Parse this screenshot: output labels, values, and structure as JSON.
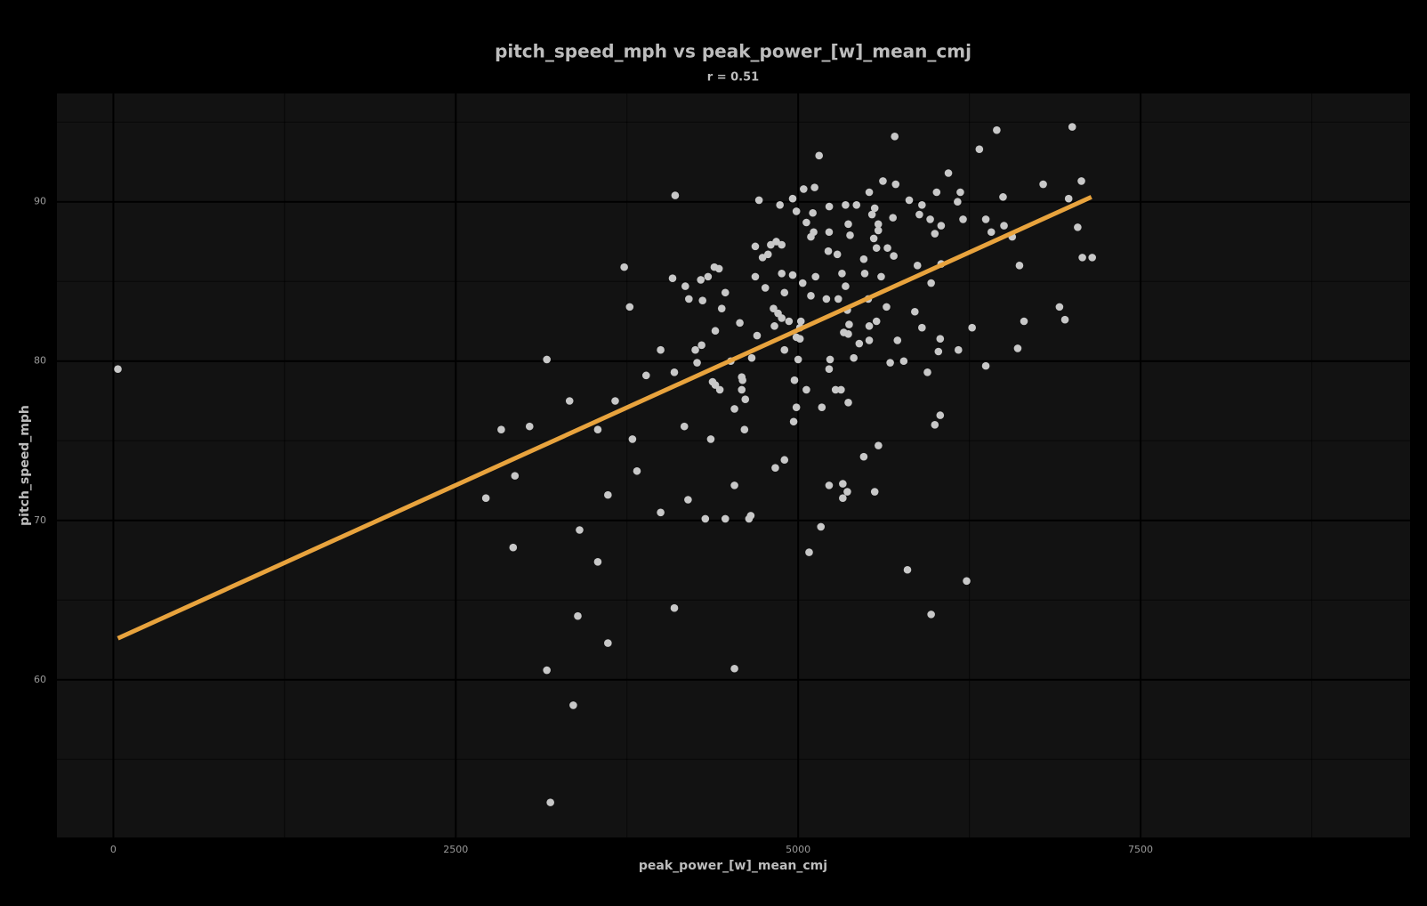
{
  "chart_data": {
    "type": "scatter",
    "title": "pitch_speed_mph vs peak_power_[w]_mean_cmj",
    "subtitle": "r =  0.51",
    "x_label": "peak_power_[w]_mean_cmj",
    "y_label": "pitch_speed_mph",
    "xlim": [
      -412,
      9468
    ],
    "ylim": [
      50.1,
      96.8
    ],
    "xticks": [
      0,
      2500,
      5000,
      7500
    ],
    "yticks": [
      60,
      70,
      80,
      90
    ],
    "x_minor_ticks": [
      1250,
      3750,
      6250,
      8750
    ],
    "y_minor_ticks": [
      55,
      65,
      75,
      85,
      95
    ],
    "grid": true,
    "background": "#121212",
    "points": {
      "color": "#c8c8c8",
      "x": [
        33,
        7001,
        6450,
        5705,
        6323,
        5153,
        6097,
        7068,
        6789,
        5619,
        5712,
        5120,
        5040,
        6184,
        6496,
        6975,
        4102,
        4714,
        4960,
        5519,
        5811,
        6011,
        6164,
        4867,
        5227,
        5346,
        5426,
        5559,
        5904,
        4987,
        5107,
        5539,
        5692,
        5885,
        5964,
        6204,
        6370,
        5060,
        5366,
        5585,
        6044,
        6503,
        7041,
        5113,
        5226,
        5379,
        5585,
        5998,
        6410,
        6563,
        5093,
        5552,
        4840,
        4800,
        4687,
        4880,
        5572,
        5652,
        5220,
        5286,
        4780,
        4740,
        5479,
        5698,
        7075,
        7147,
        3730,
        4388,
        4422,
        5871,
        6044,
        6616,
        4880,
        4960,
        5127,
        5320,
        5486,
        5606,
        4083,
        4289,
        4342,
        4687,
        5033,
        5971,
        4176,
        4760,
        4900,
        5346,
        4468,
        5093,
        4202,
        4302,
        5206,
        5293,
        5512,
        3770,
        4820,
        4853,
        4442,
        5359,
        5645,
        5852,
        6908,
        4880,
        4933,
        5020,
        5372,
        5572,
        5519,
        6649,
        6948,
        4574,
        4827,
        5013,
        5904,
        6270,
        4395,
        5333,
        5366,
        4700,
        4987,
        5013,
        6037,
        4295,
        5446,
        5519,
        5725,
        4249,
        3996,
        4900,
        6024,
        6170,
        6603,
        4661,
        5000,
        5233,
        5406,
        3165,
        4262,
        4508,
        5672,
        5771,
        5226,
        6370,
        4096,
        5944,
        3890,
        4588,
        4594,
        4973,
        4375,
        4395,
        5060,
        5273,
        5313,
        4428,
        4588,
        3331,
        3664,
        4614,
        5366,
        4987,
        5173,
        4535,
        6037,
        4967,
        4169,
        5998,
        3039,
        2832,
        3537,
        4608,
        4362,
        3790,
        5586,
        5479,
        4900,
        4833,
        3823,
        2932,
        5326,
        5226,
        4535,
        5359,
        5559,
        3611,
        2720,
        5326,
        4196,
        3996,
        4654,
        4641,
        4322,
        4468,
        3404,
        5166,
        2919,
        5080,
        3537,
        5798,
        6230,
        4096,
        3391,
        5971,
        3611,
        3165,
        4535,
        3358,
        3191
      ],
      "y": [
        79.5,
        94.7,
        94.5,
        94.1,
        93.3,
        92.9,
        91.8,
        91.3,
        91.1,
        91.3,
        91.1,
        90.9,
        90.8,
        90.6,
        90.3,
        90.2,
        90.4,
        90.1,
        90.2,
        90.6,
        90.1,
        90.6,
        90.0,
        89.8,
        89.7,
        89.8,
        89.8,
        89.6,
        89.8,
        89.4,
        89.3,
        89.2,
        89.0,
        89.2,
        88.9,
        88.9,
        88.9,
        88.7,
        88.6,
        88.6,
        88.5,
        88.5,
        88.4,
        88.1,
        88.1,
        87.9,
        88.2,
        88.0,
        88.1,
        87.8,
        87.8,
        87.7,
        87.5,
        87.3,
        87.2,
        87.3,
        87.1,
        87.1,
        86.9,
        86.7,
        86.7,
        86.5,
        86.4,
        86.6,
        86.5,
        86.5,
        85.9,
        85.9,
        85.8,
        86.0,
        86.1,
        86.0,
        85.5,
        85.4,
        85.3,
        85.5,
        85.5,
        85.3,
        85.2,
        85.1,
        85.3,
        85.3,
        84.9,
        84.9,
        84.7,
        84.6,
        84.3,
        84.7,
        84.3,
        84.1,
        83.9,
        83.8,
        83.9,
        83.9,
        83.9,
        83.4,
        83.3,
        83.0,
        83.3,
        83.2,
        83.4,
        83.1,
        83.4,
        82.7,
        82.5,
        82.5,
        82.3,
        82.5,
        82.2,
        82.5,
        82.6,
        82.4,
        82.2,
        82.1,
        82.1,
        82.1,
        81.9,
        81.8,
        81.7,
        81.6,
        81.5,
        81.4,
        81.4,
        81.0,
        81.1,
        81.3,
        81.3,
        80.7,
        80.7,
        80.7,
        80.6,
        80.7,
        80.8,
        80.2,
        80.1,
        80.1,
        80.2,
        80.1,
        79.9,
        80.0,
        79.9,
        80.0,
        79.5,
        79.7,
        79.3,
        79.3,
        79.1,
        79.0,
        78.8,
        78.8,
        78.7,
        78.5,
        78.2,
        78.2,
        78.2,
        78.2,
        78.2,
        77.5,
        77.5,
        77.6,
        77.4,
        77.1,
        77.1,
        77.0,
        76.6,
        76.2,
        75.9,
        76.0,
        75.9,
        75.7,
        75.7,
        75.7,
        75.1,
        75.1,
        74.7,
        74.0,
        73.8,
        73.3,
        73.1,
        72.8,
        72.3,
        72.2,
        72.2,
        71.8,
        71.8,
        71.6,
        71.4,
        71.4,
        71.3,
        70.5,
        70.3,
        70.1,
        70.1,
        70.1,
        69.4,
        69.6,
        68.3,
        68.0,
        67.4,
        66.9,
        66.2,
        64.5,
        64.0,
        64.1,
        62.3,
        60.6,
        60.7,
        58.4,
        52.3
      ]
    },
    "trend": {
      "color": "#e8a33d",
      "x": [
        33,
        7141
      ],
      "y": [
        62.6,
        90.3
      ]
    }
  }
}
